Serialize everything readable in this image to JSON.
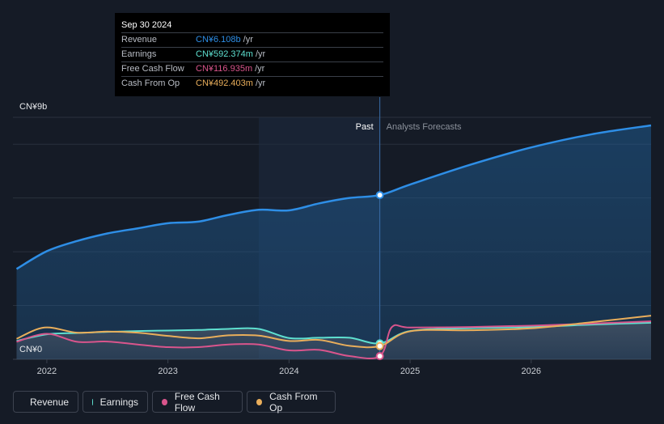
{
  "tooltip": {
    "date": "Sep 30 2024",
    "rows": [
      {
        "label": "Revenue",
        "value": "CN¥6.108b",
        "unit": "/yr",
        "color": "#2e8ee6"
      },
      {
        "label": "Earnings",
        "value": "CN¥592.374m",
        "unit": "/yr",
        "color": "#5ee0d0"
      },
      {
        "label": "Free Cash Flow",
        "value": "CN¥116.935m",
        "unit": "/yr",
        "color": "#d9558c"
      },
      {
        "label": "Cash From Op",
        "value": "CN¥492.403m",
        "unit": "/yr",
        "color": "#e9ae5b"
      }
    ]
  },
  "legend": [
    {
      "label": "Revenue",
      "color": "#2e8ee6"
    },
    {
      "label": "Earnings",
      "color": "#5ee0d0"
    },
    {
      "label": "Free Cash Flow",
      "color": "#d9558c"
    },
    {
      "label": "Cash From Op",
      "color": "#e9ae5b"
    }
  ],
  "chart_data": {
    "type": "line",
    "y_top_label": "CN¥9b",
    "y_bottom_label": "CN¥0",
    "ylim": [
      0,
      9
    ],
    "xlim": [
      2021.72,
      2026.99
    ],
    "x_ticks": [
      "2022",
      "2023",
      "2024",
      "2025",
      "2026"
    ],
    "x_tick_values": [
      2022,
      2023,
      2024,
      2025,
      2026
    ],
    "past_label": "Past",
    "forecast_label": "Analysts Forecasts",
    "divider_x": 2024.75,
    "highlight_start_x": 2023.75,
    "grid": true,
    "series": [
      {
        "name": "Revenue",
        "color": "#2e8ee6",
        "fill": true,
        "x": [
          2021.75,
          2022.0,
          2022.25,
          2022.5,
          2022.75,
          2023.0,
          2023.25,
          2023.5,
          2023.75,
          2024.0,
          2024.25,
          2024.5,
          2024.75,
          2025.0,
          2025.5,
          2026.0,
          2026.5,
          2026.99
        ],
        "y": [
          3.36,
          4.02,
          4.4,
          4.68,
          4.87,
          5.06,
          5.12,
          5.37,
          5.56,
          5.54,
          5.8,
          6.0,
          6.108,
          6.5,
          7.24,
          7.88,
          8.37,
          8.7
        ]
      },
      {
        "name": "Earnings",
        "color": "#5ee0d0",
        "fill": false,
        "x": [
          2021.75,
          2022.0,
          2022.25,
          2022.5,
          2022.75,
          2023.0,
          2023.25,
          2023.5,
          2023.75,
          2024.0,
          2024.25,
          2024.5,
          2024.75,
          2025.0,
          2025.5,
          2026.0,
          2026.5,
          2026.99
        ],
        "y": [
          0.68,
          0.93,
          0.98,
          1.02,
          1.05,
          1.07,
          1.09,
          1.13,
          1.13,
          0.79,
          0.8,
          0.8,
          0.592,
          1.05,
          1.16,
          1.2,
          1.29,
          1.36
        ]
      },
      {
        "name": "Free Cash Flow",
        "color": "#d9558c",
        "fill": false,
        "x": [
          2021.75,
          2022.0,
          2022.25,
          2022.5,
          2022.75,
          2023.0,
          2023.25,
          2023.5,
          2023.75,
          2024.0,
          2024.25,
          2024.5,
          2024.75,
          2024.85,
          2025.0,
          2025.5,
          2026.0,
          2026.5,
          2026.99
        ],
        "y": [
          0.65,
          0.95,
          0.65,
          0.66,
          0.55,
          0.45,
          0.45,
          0.55,
          0.55,
          0.33,
          0.35,
          0.12,
          0.117,
          1.2,
          1.18,
          1.2,
          1.25,
          1.33,
          1.41
        ]
      },
      {
        "name": "Cash From Op",
        "color": "#e9ae5b",
        "fill": false,
        "x": [
          2021.75,
          2021.98,
          2022.25,
          2022.5,
          2022.75,
          2023.0,
          2023.25,
          2023.5,
          2023.75,
          2024.0,
          2024.25,
          2024.5,
          2024.75,
          2025.0,
          2025.5,
          2026.0,
          2026.5,
          2026.99
        ],
        "y": [
          0.76,
          1.18,
          0.99,
          1.03,
          0.99,
          0.87,
          0.78,
          0.89,
          0.88,
          0.68,
          0.72,
          0.5,
          0.492,
          1.04,
          1.08,
          1.15,
          1.38,
          1.62
        ]
      }
    ]
  }
}
